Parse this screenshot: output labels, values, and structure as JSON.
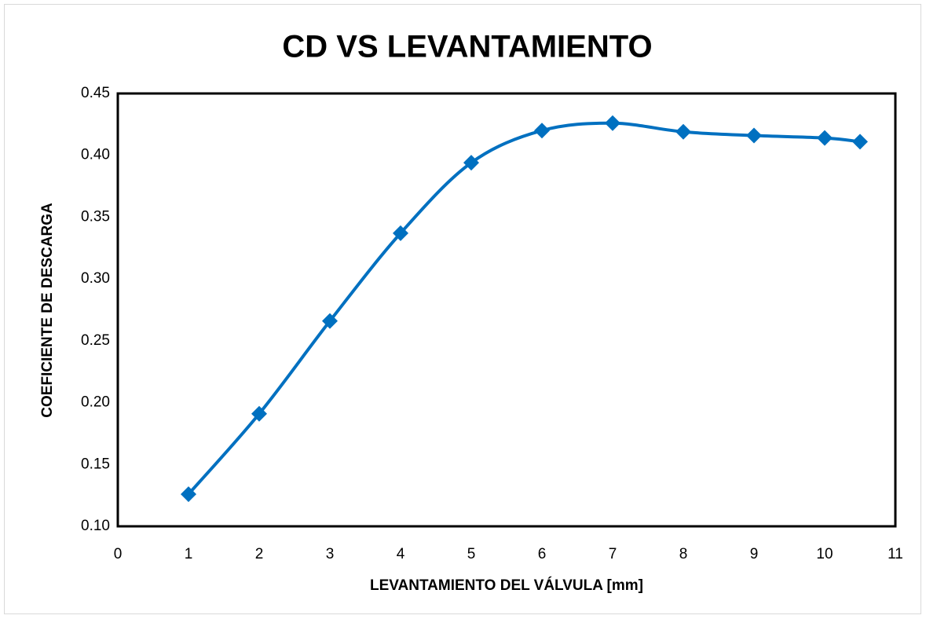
{
  "chart_data": {
    "type": "line",
    "title": "CD VS LEVANTAMIENTO",
    "x_label": "LEVANTAMIENTO DEL VÁLVULA [mm]",
    "y_label": "COEFICIENTE DE DESCARGA",
    "x": [
      1,
      2,
      3,
      4,
      5,
      6,
      7,
      8,
      9,
      10,
      10.5
    ],
    "series": [
      {
        "name": "CD",
        "color": "#0070c0",
        "values": [
          0.126,
          0.191,
          0.266,
          0.337,
          0.394,
          0.42,
          0.426,
          0.419,
          0.416,
          0.414,
          0.411
        ]
      }
    ],
    "xlim": [
      0,
      11
    ],
    "xticks": [
      0,
      1,
      2,
      3,
      4,
      5,
      6,
      7,
      8,
      9,
      10,
      11
    ],
    "ylim": [
      0.1,
      0.45
    ],
    "yticks": [
      {
        "value": 0.1,
        "label": "0.10"
      },
      0.15,
      {
        "value": 0.2,
        "label": "0.20"
      },
      0.25,
      {
        "value": 0.3,
        "label": "0.30"
      },
      0.35,
      {
        "value": 0.4,
        "label": "0.40"
      },
      0.45
    ],
    "grid": false,
    "smooth": true
  }
}
